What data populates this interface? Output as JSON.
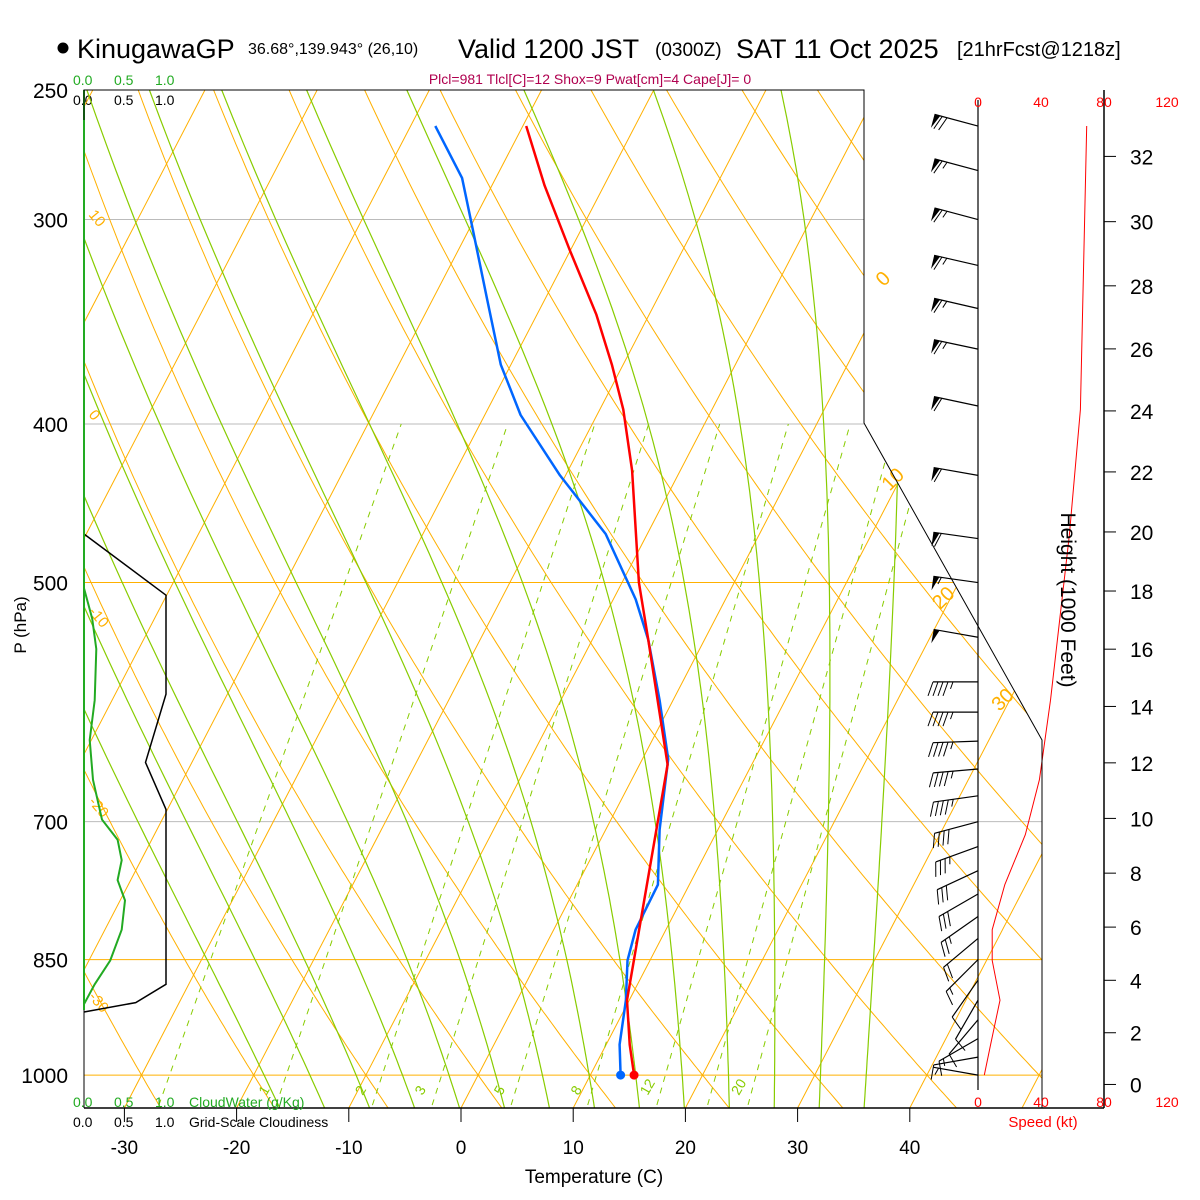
{
  "header": {
    "station": "KinugawaGP",
    "coords": "36.68°,139.943° (26,10)",
    "valid": "Valid 1200 JST",
    "utc": "(0300Z)",
    "date": "SAT 11 Oct 2025",
    "forecast": "[21hrFcst@1218z]",
    "indices": "Plcl=981 Tlcl[C]=12 Shox=9 Pwat[cm]=4 Cape[J]= 0"
  },
  "colors": {
    "temperature": "#ff0000",
    "dewpoint": "#0066ff",
    "isotherm": "#ffb000",
    "moist_adiabat": "#88cc00",
    "mixing_ratio": "#88cc00",
    "cloudwater": "#22aa22",
    "cloudiness": "#000000",
    "speed": "#ff0000",
    "indices": "#b0004f"
  },
  "chart_data": {
    "type": "line",
    "title": "KinugawaGP Valid 1200 JST (0300Z) SAT 11 Oct 2025",
    "xlabel": "Temperature (C)",
    "ylabel": "P (hPa)",
    "y2label": "Height (1000 Feet)",
    "xlim": [
      -33.6,
      47
    ],
    "ylim": [
      1000,
      250
    ],
    "x_ticks": [
      "-30",
      "-20",
      "-10",
      "0",
      "10",
      "20",
      "30",
      "40"
    ],
    "x_tick_values": [
      -30,
      -20,
      -10,
      0,
      10,
      20,
      30,
      40
    ],
    "p_ticks": [
      "250",
      "300",
      "400",
      "500",
      "700",
      "850",
      "1000"
    ],
    "p_tick_values": [
      250,
      300,
      400,
      500,
      700,
      850,
      1000
    ],
    "height_ticks": [
      "0",
      "2",
      "4",
      "6",
      "8",
      "10",
      "12",
      "14",
      "16",
      "18",
      "20",
      "22",
      "24",
      "26",
      "28",
      "30",
      "32"
    ],
    "height_tick_values": [
      0,
      2,
      4,
      6,
      8,
      10,
      12,
      14,
      16,
      18,
      20,
      22,
      24,
      26,
      28,
      30,
      32
    ],
    "isotherm_labels": [
      "0",
      "10",
      "20",
      "30"
    ],
    "isotherm_label_values": [
      0,
      10,
      20,
      30
    ],
    "adiabat_labels": [
      "10",
      "0",
      "-10",
      "-20",
      "-30"
    ],
    "mixing_ratio_labels": [
      "1",
      "2",
      "3",
      "5",
      "8",
      "12",
      "20"
    ],
    "mixing_ratio_values": [
      1,
      2,
      3,
      5,
      8,
      12,
      20
    ],
    "series": [
      {
        "name": "Temperature",
        "p": [
          1000,
          958,
          900,
          646,
          542,
          500,
          427,
          392,
          368,
          343,
          313,
          286,
          263
        ],
        "t": [
          13.9,
          12.1,
          9.8,
          2.5,
          -5.0,
          -8.5,
          -14.3,
          -17.9,
          -21.0,
          -24.7,
          -30.1,
          -35.3,
          -39.7
        ]
      },
      {
        "name": "Dewpoint",
        "p": [
          1000,
          958,
          900,
          851,
          815,
          765,
          708,
          641,
          590,
          542,
          512,
          467,
          430,
          395,
          368,
          336,
          304,
          283,
          263
        ],
        "t": [
          12.7,
          11.2,
          9.7,
          8.0,
          7.3,
          7.2,
          4.8,
          2.3,
          -1.2,
          -5.0,
          -8.0,
          -13.7,
          -20.5,
          -26.8,
          -30.9,
          -35.1,
          -39.7,
          -43.0,
          -47.8
        ]
      }
    ],
    "wind_speed_profile": {
      "label": "Speed (kt)",
      "axis_ticks": [
        "0",
        "40",
        "80",
        "120"
      ],
      "axis_tick_values": [
        0,
        40,
        80,
        120
      ],
      "p": [
        263,
        392,
        468,
        590,
        660,
        713,
        765,
        815,
        851,
        900,
        958,
        1000
      ],
      "speed_kt": [
        69,
        65,
        58,
        46,
        39,
        30,
        17,
        9,
        9,
        14,
        8,
        4
      ]
    },
    "wind_barbs": {
      "p": [
        263,
        280,
        300,
        320,
        340,
        360,
        390,
        430,
        470,
        500,
        540,
        575,
        600,
        625,
        650,
        675,
        700,
        725,
        750,
        775,
        800,
        825,
        850,
        875,
        900,
        925,
        950,
        975,
        1000
      ],
      "dir_deg": [
        285,
        285,
        285,
        283,
        283,
        282,
        282,
        280,
        278,
        278,
        280,
        270,
        270,
        268,
        265,
        262,
        255,
        250,
        245,
        240,
        235,
        230,
        225,
        215,
        210,
        220,
        240,
        260,
        280
      ],
      "speed_kt": [
        68,
        67,
        66,
        65,
        64,
        63,
        62,
        60,
        58,
        57,
        52,
        47,
        46,
        45,
        44,
        43,
        40,
        36,
        32,
        28,
        24,
        20,
        17,
        12,
        9,
        12,
        14,
        8,
        5
      ]
    },
    "cloudwater": {
      "label": "CloudWater (g/Kg)",
      "axis_ticks": [
        "0.0",
        "0.5",
        "1.0"
      ],
      "p": [
        250,
        504,
        526,
        549,
        590,
        624,
        660,
        698,
        718,
        739,
        760,
        782,
        815,
        851,
        880,
        905
      ],
      "value": [
        0,
        0,
        0.1,
        0.15,
        0.13,
        0.07,
        0.11,
        0.22,
        0.41,
        0.46,
        0.41,
        0.5,
        0.46,
        0.32,
        0.13,
        0
      ]
    },
    "cloudiness": {
      "label": "Grid-Scale Cloudiness",
      "axis_ticks": [
        "0.0",
        "0.5",
        "1.0"
      ],
      "p": [
        467,
        509,
        585,
        644,
        688,
        880,
        903,
        915
      ],
      "value": [
        0,
        1.0,
        1.0,
        0.75,
        1.0,
        1.0,
        0.63,
        0
      ]
    }
  }
}
